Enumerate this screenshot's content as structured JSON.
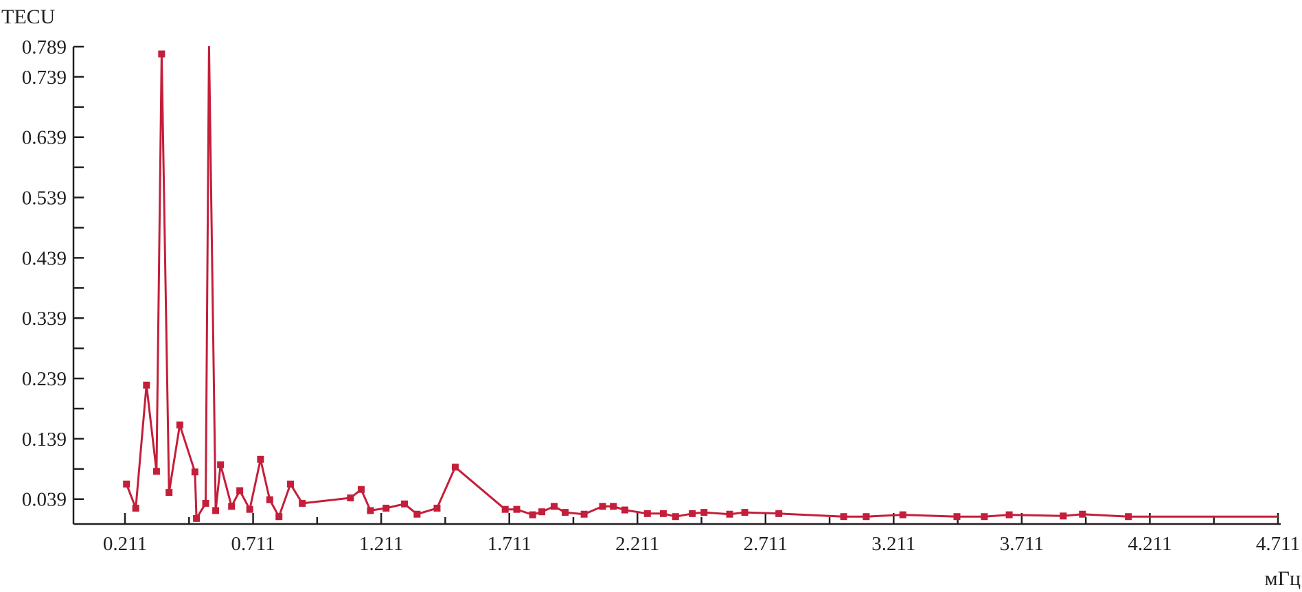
{
  "chart_data": {
    "type": "line",
    "title": "",
    "xlabel": "мГц",
    "ylabel": "TECU",
    "xlim": [
      0.211,
      4.711
    ],
    "ylim": [
      0,
      0.789
    ],
    "x_ticks": [
      "0.211",
      "0.711",
      "1.211",
      "1.711",
      "2.211",
      "2.711",
      "3.211",
      "3.711",
      "4.211",
      "4.711"
    ],
    "y_ticks": [
      "0.039",
      "0.139",
      "0.239",
      "0.339",
      "0.439",
      "0.539",
      "0.639",
      "0.739",
      "0.789"
    ],
    "grid": false,
    "colors": {
      "series": "#c41e3a",
      "axis": "#231f20"
    },
    "series": [
      {
        "points": [
          {
            "x": 0.217,
            "y": 0.064,
            "m": true
          },
          {
            "x": 0.253,
            "y": 0.024,
            "m": true
          },
          {
            "x": 0.295,
            "y": 0.228,
            "m": true
          },
          {
            "x": 0.334,
            "y": 0.085,
            "m": true
          },
          {
            "x": 0.354,
            "y": 0.777,
            "m": true
          },
          {
            "x": 0.383,
            "y": 0.05,
            "m": true
          },
          {
            "x": 0.425,
            "y": 0.162,
            "m": true
          },
          {
            "x": 0.484,
            "y": 0.084,
            "m": true
          },
          {
            "x": 0.49,
            "y": 0.007,
            "m": true
          },
          {
            "x": 0.526,
            "y": 0.032,
            "m": true
          },
          {
            "x": 0.539,
            "y": 0.79,
            "m": false
          },
          {
            "x": 0.565,
            "y": 0.02,
            "m": true
          },
          {
            "x": 0.584,
            "y": 0.096,
            "m": true
          },
          {
            "x": 0.627,
            "y": 0.027,
            "m": true
          },
          {
            "x": 0.659,
            "y": 0.053,
            "m": true
          },
          {
            "x": 0.698,
            "y": 0.022,
            "m": true
          },
          {
            "x": 0.74,
            "y": 0.105,
            "m": true
          },
          {
            "x": 0.776,
            "y": 0.038,
            "m": true
          },
          {
            "x": 0.812,
            "y": 0.01,
            "m": true
          },
          {
            "x": 0.857,
            "y": 0.064,
            "m": true
          },
          {
            "x": 0.903,
            "y": 0.032,
            "m": true
          },
          {
            "x": 1.091,
            "y": 0.041,
            "m": true
          },
          {
            "x": 1.133,
            "y": 0.055,
            "m": true
          },
          {
            "x": 1.169,
            "y": 0.02,
            "m": true
          },
          {
            "x": 1.23,
            "y": 0.024,
            "m": true
          },
          {
            "x": 1.302,
            "y": 0.031,
            "m": true
          },
          {
            "x": 1.351,
            "y": 0.014,
            "m": true
          },
          {
            "x": 1.429,
            "y": 0.024,
            "m": true
          },
          {
            "x": 1.5,
            "y": 0.092,
            "m": true
          },
          {
            "x": 1.695,
            "y": 0.022,
            "m": true
          },
          {
            "x": 1.74,
            "y": 0.022,
            "m": true
          },
          {
            "x": 1.802,
            "y": 0.013,
            "m": true
          },
          {
            "x": 1.838,
            "y": 0.018,
            "m": true
          },
          {
            "x": 1.886,
            "y": 0.027,
            "m": true
          },
          {
            "x": 1.929,
            "y": 0.017,
            "m": true
          },
          {
            "x": 2.003,
            "y": 0.014,
            "m": true
          },
          {
            "x": 2.075,
            "y": 0.027,
            "m": true
          },
          {
            "x": 2.117,
            "y": 0.027,
            "m": true
          },
          {
            "x": 2.162,
            "y": 0.021,
            "m": true
          },
          {
            "x": 2.25,
            "y": 0.015,
            "m": true
          },
          {
            "x": 2.312,
            "y": 0.015,
            "m": true
          },
          {
            "x": 2.36,
            "y": 0.01,
            "m": true
          },
          {
            "x": 2.425,
            "y": 0.015,
            "m": true
          },
          {
            "x": 2.471,
            "y": 0.017,
            "m": true
          },
          {
            "x": 2.571,
            "y": 0.014,
            "m": true
          },
          {
            "x": 2.63,
            "y": 0.017,
            "m": true
          },
          {
            "x": 2.763,
            "y": 0.015,
            "m": true
          },
          {
            "x": 3.016,
            "y": 0.01,
            "m": true
          },
          {
            "x": 3.104,
            "y": 0.01,
            "m": true
          },
          {
            "x": 3.247,
            "y": 0.013,
            "m": true
          },
          {
            "x": 3.458,
            "y": 0.01,
            "m": true
          },
          {
            "x": 3.565,
            "y": 0.01,
            "m": true
          },
          {
            "x": 3.662,
            "y": 0.013,
            "m": true
          },
          {
            "x": 3.873,
            "y": 0.011,
            "m": true
          },
          {
            "x": 3.948,
            "y": 0.014,
            "m": true
          },
          {
            "x": 4.127,
            "y": 0.01,
            "m": true
          },
          {
            "x": 4.711,
            "y": 0.01,
            "m": false
          }
        ]
      }
    ]
  }
}
